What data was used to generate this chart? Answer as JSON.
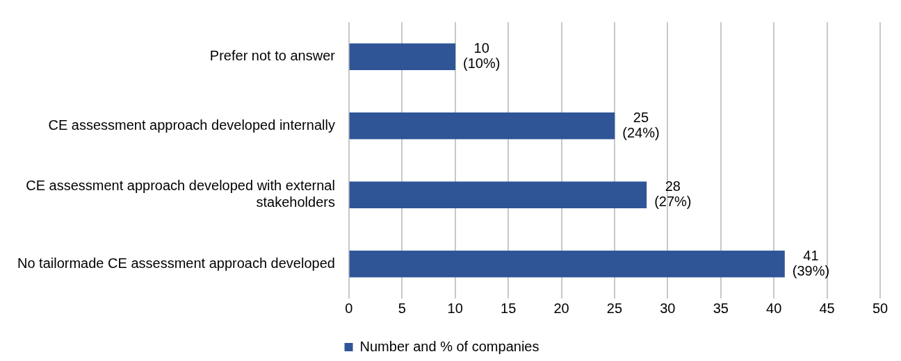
{
  "chart_data": {
    "type": "bar",
    "orientation": "horizontal",
    "categories": [
      "Prefer not to answer",
      "CE assessment approach developed internally",
      "CE assessment approach developed with external stakeholders",
      "No tailormade CE assessment approach developed"
    ],
    "series": [
      {
        "name": "Number and % of companies",
        "color": "#2f5597",
        "values": [
          10,
          25,
          28,
          41
        ],
        "value_labels": [
          "10\n(10%)",
          "25\n(24%)",
          "28\n(27%)",
          "41\n(39%)"
        ]
      }
    ],
    "xlim": [
      0,
      50
    ],
    "xticks": [
      0,
      5,
      10,
      15,
      20,
      25,
      30,
      35,
      40,
      45,
      50
    ],
    "grid": "x",
    "legend": "bottom"
  }
}
